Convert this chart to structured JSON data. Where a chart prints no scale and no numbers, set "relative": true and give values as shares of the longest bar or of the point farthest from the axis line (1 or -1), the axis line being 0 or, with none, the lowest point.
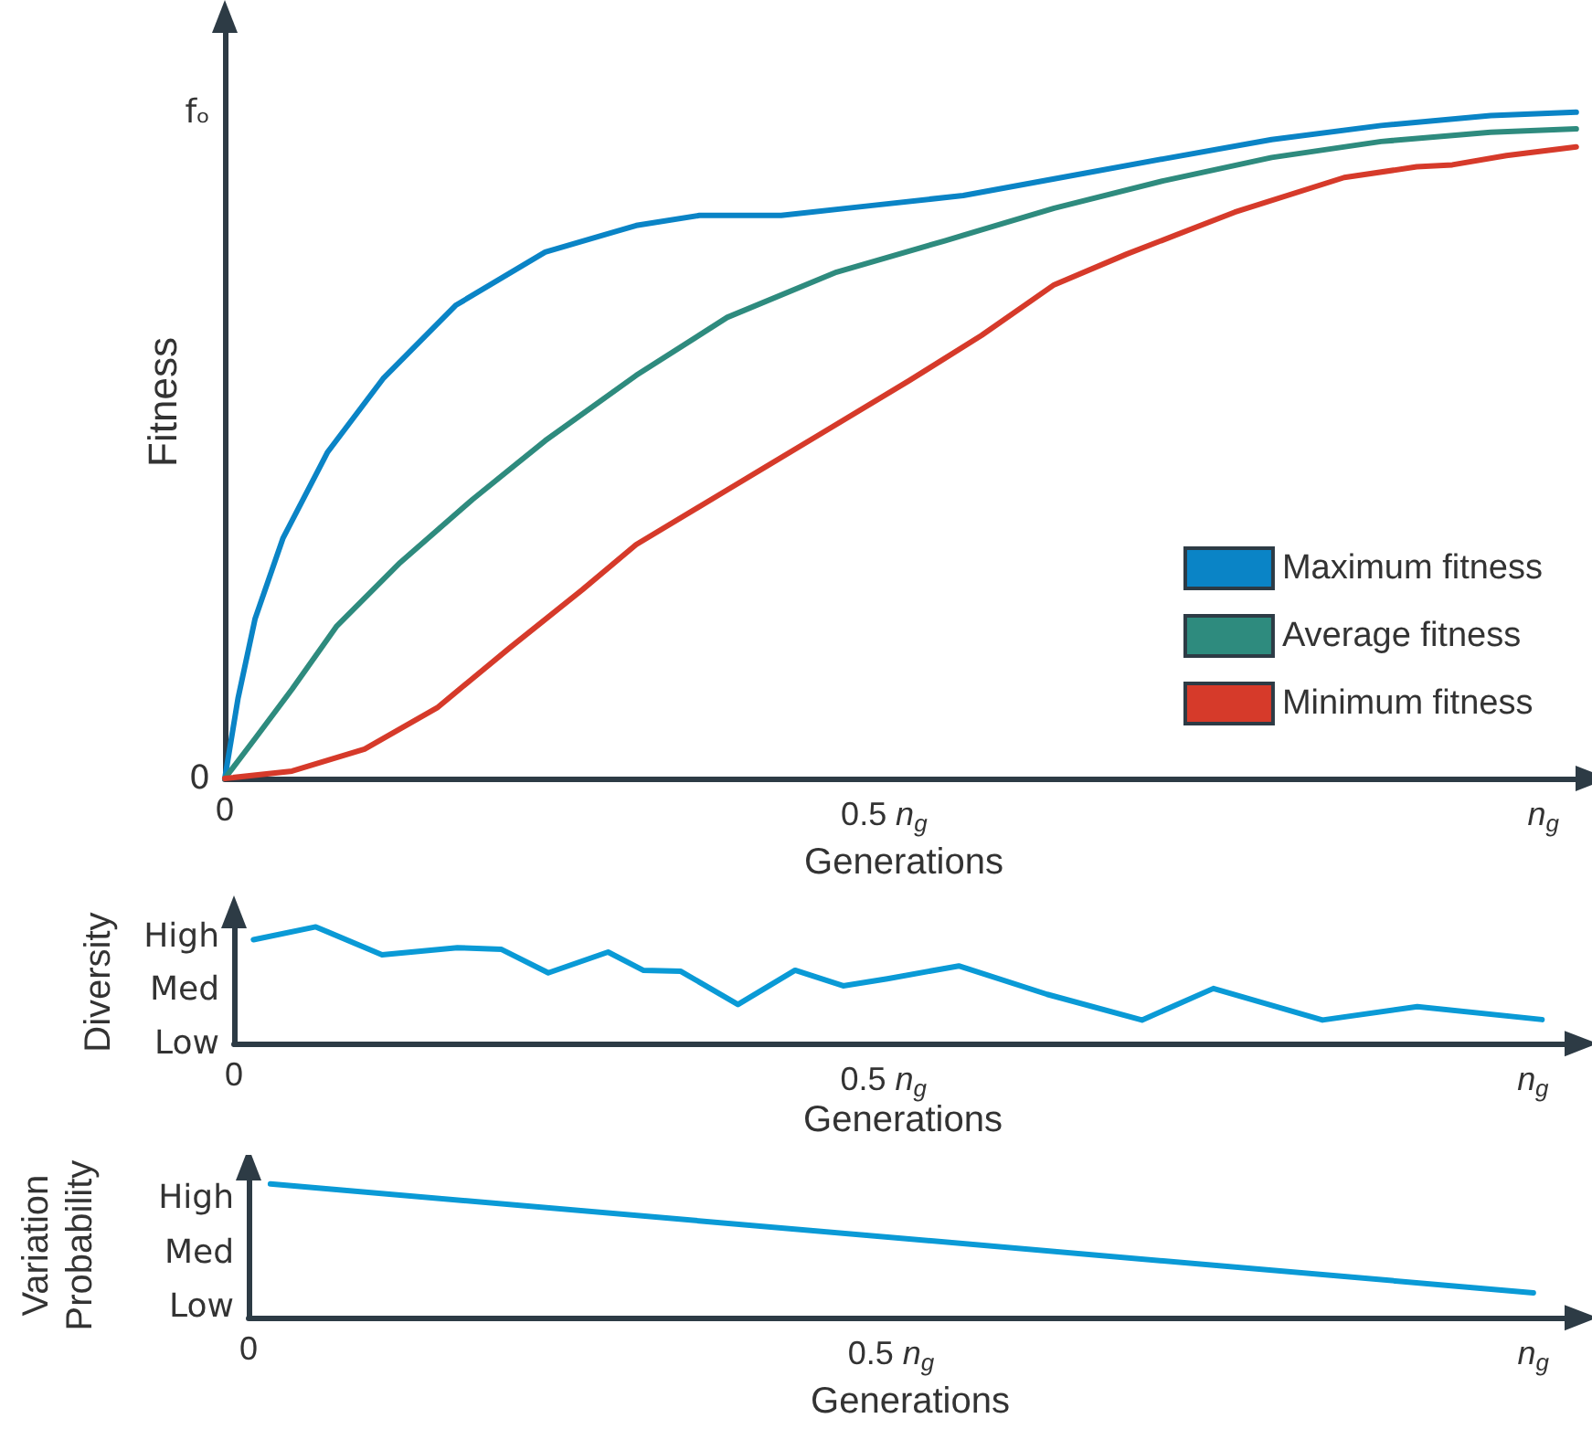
{
  "chart_data": [
    {
      "type": "line",
      "relative": true,
      "xlabel": "Generations",
      "ylabel": "Fitness",
      "xlim": [
        0,
        1.03
      ],
      "xticks": [
        {
          "value": 0,
          "label": "0"
        },
        {
          "value": 0.5,
          "label": "0.5 n$_{g}$"
        },
        {
          "value": 1,
          "label": "n$_{g}$"
        }
      ],
      "annotations": [
        "0",
        "fₒ"
      ],
      "legend": "bottom right",
      "grid": false,
      "marker": "none",
      "line_style": "solid",
      "series": [
        {
          "name": "Maximum fitness",
          "color": "#0a84c6",
          "x": [
            0,
            0.01,
            0.023,
            0.044,
            0.078,
            0.12,
            0.175,
            0.243,
            0.312,
            0.36,
            0.422,
            0.491,
            0.56,
            0.629,
            0.712,
            0.794,
            0.877,
            0.96,
            1.025
          ],
          "values": [
            0,
            0.12,
            0.24,
            0.36,
            0.49,
            0.6,
            0.71,
            0.79,
            0.83,
            0.845,
            0.845,
            0.86,
            0.875,
            0.9,
            0.93,
            0.959,
            0.98,
            0.995,
            1
          ]
        },
        {
          "name": "Average fitness",
          "color": "#2e8b7e",
          "x": [
            0,
            0.023,
            0.051,
            0.085,
            0.133,
            0.188,
            0.243,
            0.312,
            0.381,
            0.464,
            0.546,
            0.629,
            0.712,
            0.794,
            0.877,
            0.96,
            1.025
          ],
          "values": [
            0,
            0.06,
            0.134,
            0.229,
            0.324,
            0.419,
            0.507,
            0.605,
            0.692,
            0.76,
            0.807,
            0.856,
            0.897,
            0.932,
            0.956,
            0.97,
            0.975
          ]
        },
        {
          "name": "Minimum fitness",
          "color": "#d63a2a",
          "x": [
            0,
            0.051,
            0.106,
            0.161,
            0.216,
            0.271,
            0.312,
            0.381,
            0.45,
            0.519,
            0.574,
            0.629,
            0.684,
            0.766,
            0.849,
            0.904,
            0.931,
            0.972,
            1.025
          ],
          "values": [
            0,
            0.011,
            0.044,
            0.106,
            0.196,
            0.283,
            0.351,
            0.433,
            0.515,
            0.597,
            0.665,
            0.741,
            0.787,
            0.85,
            0.902,
            0.918,
            0.921,
            0.935,
            0.948
          ]
        }
      ]
    },
    {
      "type": "line",
      "relative": true,
      "xlabel": "Generations",
      "ylabel": "Diversity",
      "xlim": [
        0,
        1.03
      ],
      "xticks": [
        {
          "value": 0,
          "label": "0"
        },
        {
          "value": 0.5,
          "label": "0.5 n$_{g}$"
        },
        {
          "value": 1,
          "label": "n$_{g}$"
        }
      ],
      "annotations": [
        "Low",
        "Med",
        "High"
      ],
      "grid": false,
      "marker": "none",
      "line_style": "solid",
      "color": "#0a9ad6",
      "x": [
        0.015,
        0.063,
        0.114,
        0.172,
        0.206,
        0.242,
        0.288,
        0.315,
        0.344,
        0.388,
        0.432,
        0.469,
        0.503,
        0.558,
        0.626,
        0.699,
        0.754,
        0.838,
        0.911,
        1.007
      ],
      "values": [
        0.89,
        1,
        0.761,
        0.821,
        0.807,
        0.606,
        0.784,
        0.628,
        0.619,
        0.335,
        0.628,
        0.495,
        0.555,
        0.665,
        0.422,
        0.202,
        0.472,
        0.202,
        0.317,
        0.206
      ]
    },
    {
      "type": "line",
      "relative": true,
      "xlabel": "Generations",
      "ylabel": "Variation\nProbability",
      "xlim": [
        0,
        1.03
      ],
      "xticks": [
        {
          "value": 0,
          "label": "0"
        },
        {
          "value": 0.5,
          "label": "0.5 n$_{g}$"
        },
        {
          "value": 1,
          "label": "n$_{g}$"
        }
      ],
      "annotations": [
        "Low",
        "Med",
        "High"
      ],
      "grid": false,
      "marker": "none",
      "line_style": "solid",
      "color": "#0a9ad6",
      "x": [
        0.017,
        1.0
      ],
      "values": [
        1,
        0.186
      ]
    }
  ]
}
